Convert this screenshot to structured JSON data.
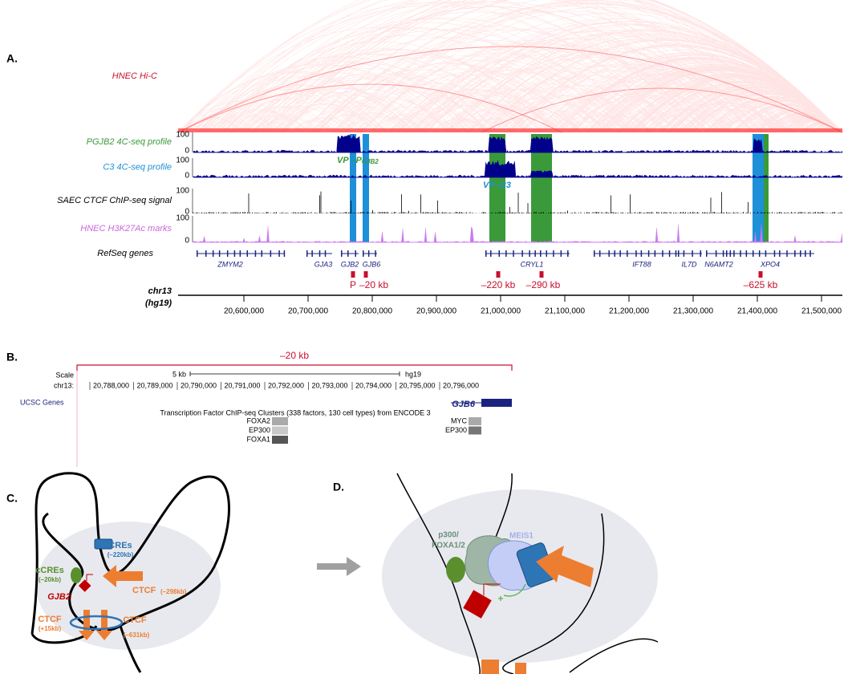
{
  "panel_a": {
    "label": "A.",
    "hic": "HNEC Hi-C",
    "tracks": [
      {
        "name": "PGJB2 4C-seq profile",
        "max": "100",
        "min": "0"
      },
      {
        "name": "C3 4C-seq profile",
        "max": "100",
        "min": "0"
      },
      {
        "name": "SAEC CTCF ChIP-seq signal",
        "max": "100",
        "min": "0"
      },
      {
        "name": "HNEC H3K27Ac marks",
        "max": "100",
        "min": "0"
      }
    ],
    "vp_pgjb2": {
      "main": "VP –P",
      "sub": "GJB2"
    },
    "vp_c3": "VP -C3",
    "refseq": "RefSeq genes",
    "genes": [
      "ZMYM2",
      "GJA3",
      "GJB2",
      "GJB6",
      "CRYL1",
      "IFT88",
      "IL7D",
      "N6AMT2",
      "XPO4"
    ],
    "sites": {
      "p": "P",
      "labels": [
        "–20 kb",
        "–220 kb",
        "–290 kb",
        "–625 kb"
      ]
    },
    "chrom": "chr13",
    "assembly": "(hg19)",
    "axis_ticks": [
      "20,600,000",
      "20,700,000",
      "20,800,000",
      "20,900,000",
      "21,000,000",
      "21,100,000",
      "21,200,000",
      "21,300,000",
      "21,400,000",
      "21,500,000"
    ]
  },
  "panel_b": {
    "label": "B.",
    "region": "–20 kb",
    "scale": "Scale",
    "scale_len": "5 kb",
    "assembly": "hg19",
    "chrom": "chr13:",
    "ticks": [
      "20,788,000",
      "20,789,000",
      "20,790,000",
      "20,791,000",
      "20,792,000",
      "20,793,000",
      "20,794,000",
      "20,795,000",
      "20,796,000"
    ],
    "ucsc": "UCSC Genes",
    "gene": "GJB6",
    "tf_title": "Transcription Factor ChIP-seq Clusters (338 factors, 130 cell types) from ENCODE 3",
    "tf_left": [
      "FOXA2",
      "EP300",
      "FOXA1"
    ],
    "tf_right": [
      "MYC",
      "EP300"
    ]
  },
  "panel_c": {
    "label": "C.",
    "cres": "CREs",
    "cres_pos": "(–220kb)",
    "ccres": "cCREs",
    "ccres_pos": "(–20kb)",
    "gjb2": "GJB2",
    "ctcf_a": "CTCF",
    "ctcf_a_pos": "(–298kb)",
    "ctcf_b": "CTCF",
    "ctcf_b_pos": "(+15kb)",
    "ctcf_c": "CTCF",
    "ctcf_c_pos": "(–631kb)"
  },
  "panel_d": {
    "label": "D.",
    "p300": "p300/",
    "foxa": "FOXA1/2",
    "meis1": "MEIS1",
    "plus": "+"
  }
}
